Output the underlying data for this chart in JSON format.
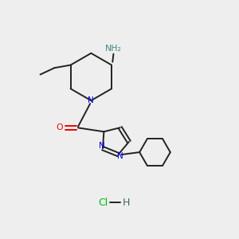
{
  "bg_color": "#eeeeee",
  "bond_color": "#222222",
  "N_color": "#0000ee",
  "O_color": "#ee0000",
  "NH2_color": "#3a8888",
  "Cl_color": "#00bb00",
  "H_color": "#3a6868",
  "lw": 1.4,
  "figsize": [
    3.0,
    3.0
  ],
  "dpi": 100,
  "xlim": [
    0,
    10
  ],
  "ylim": [
    0,
    10
  ]
}
